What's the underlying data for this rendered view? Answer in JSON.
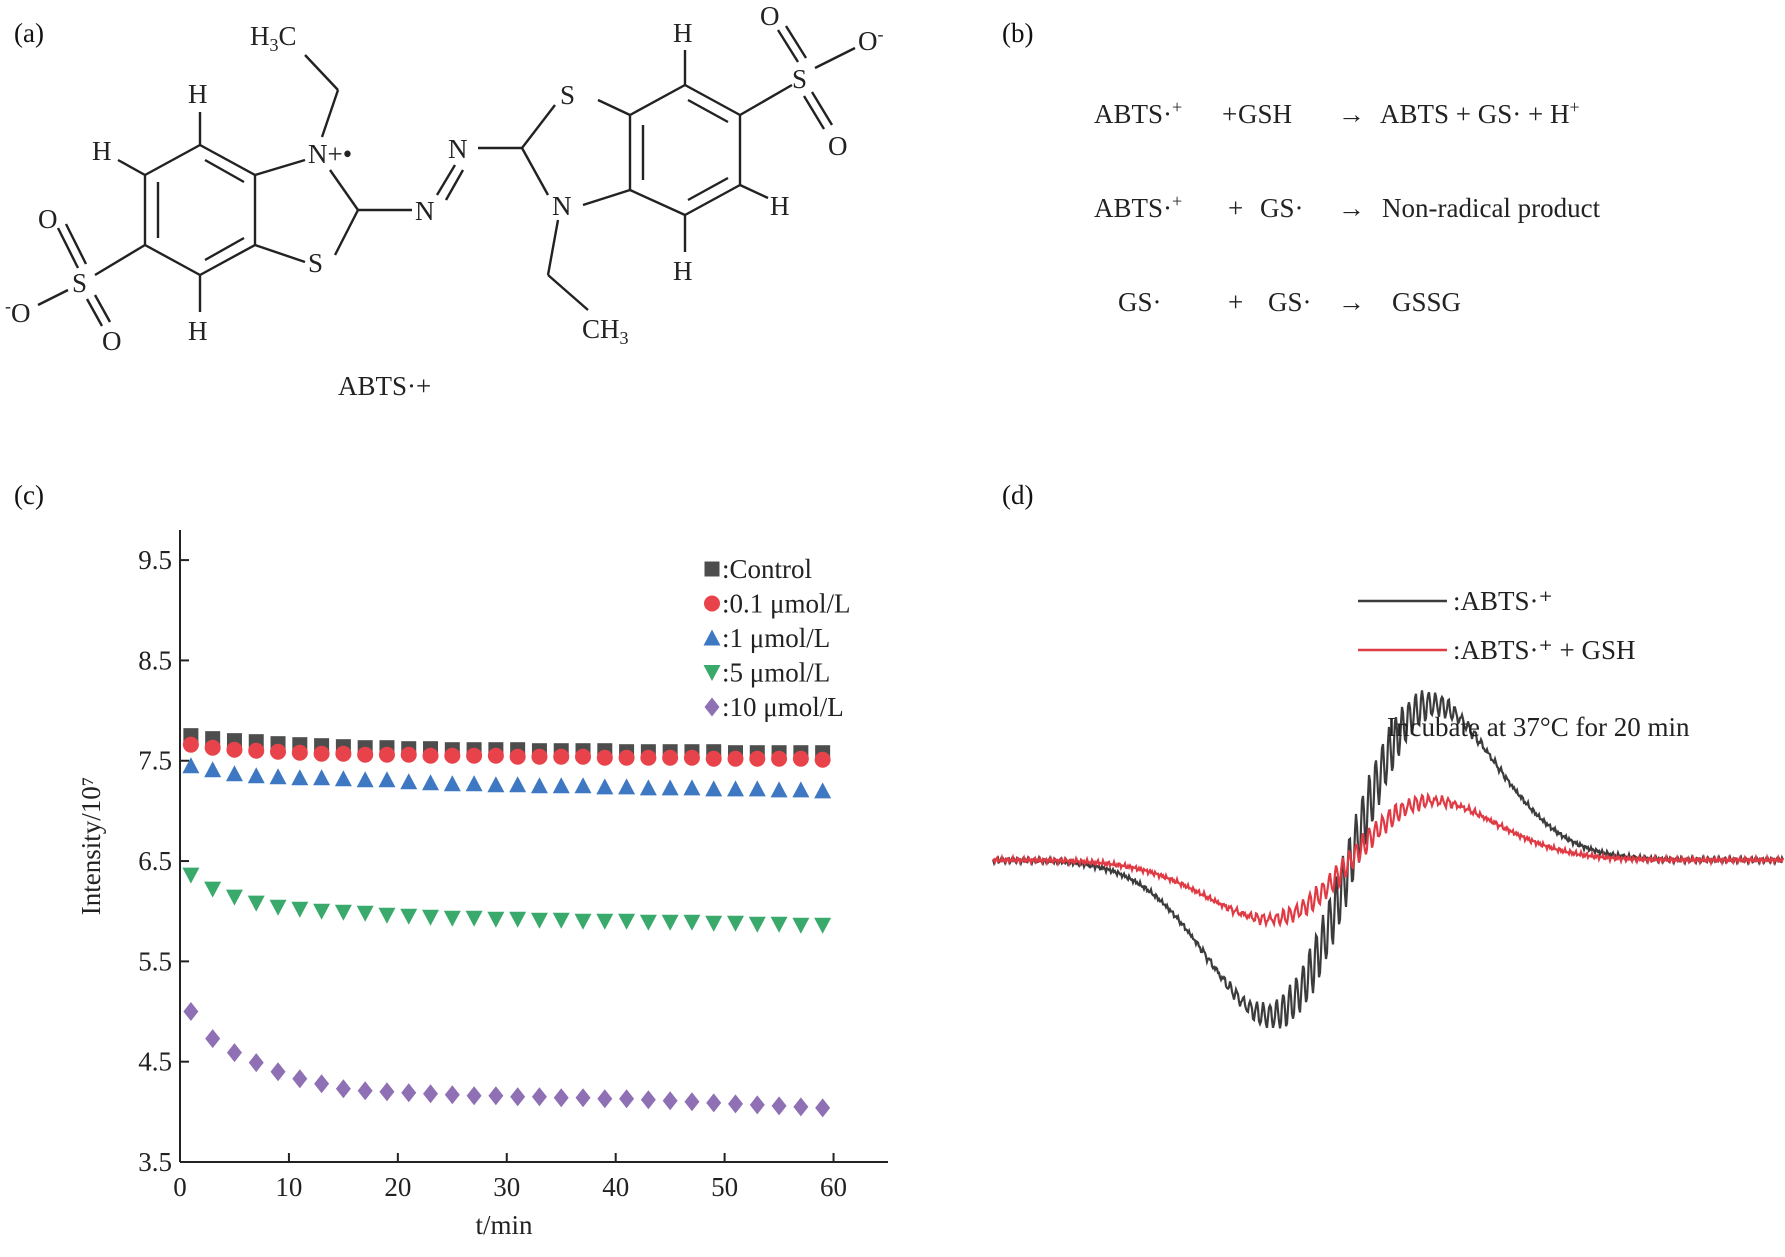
{
  "panels": {
    "a": {
      "label": "(a)",
      "caption": "ABTS·+",
      "atoms": {
        "h3c": "H3C",
        "ch3": "CH3",
        "n_plus": "N+•",
        "n2": "N",
        "n_azo1": "N",
        "n_azo2": "N",
        "s1": "S",
        "s2": "S",
        "s3": "S",
        "s4": "S",
        "o1": "O",
        "o2": "O",
        "o3": "O",
        "o4": "O",
        "o_minus1": "-O",
        "o_minus2": "O-",
        "h1": "H",
        "h2": "H",
        "h3": "H",
        "h4": "H",
        "h5": "H",
        "h6": "H"
      }
    },
    "b": {
      "label": "(b)",
      "reactions": [
        {
          "reactant1": "ABTS·+",
          "plus": "+",
          "reactant2": "GSH",
          "arrow": "→",
          "products": "ABTS + GS· + H+"
        },
        {
          "reactant1": "ABTS·+",
          "plus": "+",
          "reactant2": "GS·",
          "arrow": "→",
          "products": "Non-radical product"
        },
        {
          "reactant1": "GS·",
          "plus": "+",
          "reactant2": "GS·",
          "arrow": "→",
          "products": "GSSG"
        }
      ]
    },
    "c": {
      "label": "(c)"
    },
    "d": {
      "label": "(d)"
    }
  },
  "chart_data": [
    {
      "type": "scatter",
      "panel": "c",
      "xlabel": "t/min",
      "ylabel": "Intensity/10⁷",
      "xlim": [
        0,
        65
      ],
      "ylim": [
        3.5,
        9.8
      ],
      "xticks": [
        0,
        10,
        20,
        30,
        40,
        50,
        60
      ],
      "yticks": [
        3.5,
        4.5,
        5.5,
        6.5,
        7.5,
        8.5,
        9.5
      ],
      "legend": "top-right",
      "x": [
        1,
        3,
        5,
        7,
        9,
        11,
        13,
        15,
        17,
        19,
        21,
        23,
        25,
        27,
        29,
        31,
        33,
        35,
        37,
        39,
        41,
        43,
        45,
        47,
        49,
        51,
        53,
        55,
        57,
        59
      ],
      "series": [
        {
          "name": ":Control",
          "marker": "square",
          "color": "#4d4d4d",
          "values": [
            7.75,
            7.72,
            7.7,
            7.69,
            7.67,
            7.66,
            7.65,
            7.64,
            7.63,
            7.63,
            7.62,
            7.62,
            7.61,
            7.61,
            7.61,
            7.61,
            7.6,
            7.6,
            7.6,
            7.6,
            7.59,
            7.59,
            7.59,
            7.59,
            7.59,
            7.58,
            7.58,
            7.58,
            7.58,
            7.58
          ]
        },
        {
          "name": ":0.1 μmol/L",
          "marker": "circle",
          "color": "#e8434a",
          "values": [
            7.66,
            7.63,
            7.61,
            7.6,
            7.59,
            7.58,
            7.57,
            7.57,
            7.56,
            7.56,
            7.56,
            7.55,
            7.55,
            7.55,
            7.55,
            7.54,
            7.54,
            7.54,
            7.54,
            7.53,
            7.53,
            7.53,
            7.53,
            7.53,
            7.52,
            7.52,
            7.52,
            7.52,
            7.52,
            7.51
          ]
        },
        {
          "name": ":1 μmol/L",
          "marker": "triangle-up",
          "color": "#3e78c2",
          "values": [
            7.45,
            7.41,
            7.37,
            7.35,
            7.34,
            7.33,
            7.33,
            7.32,
            7.31,
            7.31,
            7.29,
            7.28,
            7.27,
            7.27,
            7.26,
            7.26,
            7.25,
            7.25,
            7.25,
            7.24,
            7.24,
            7.23,
            7.23,
            7.23,
            7.22,
            7.22,
            7.22,
            7.21,
            7.21,
            7.2
          ]
        },
        {
          "name": ":5 μmol/L",
          "marker": "triangle-down",
          "color": "#3aaa6c",
          "values": [
            6.36,
            6.22,
            6.14,
            6.08,
            6.04,
            6.02,
            6.0,
            5.99,
            5.98,
            5.96,
            5.95,
            5.94,
            5.93,
            5.93,
            5.92,
            5.92,
            5.91,
            5.91,
            5.9,
            5.9,
            5.9,
            5.89,
            5.89,
            5.89,
            5.88,
            5.88,
            5.87,
            5.87,
            5.86,
            5.86
          ]
        },
        {
          "name": ":10 μmol/L",
          "marker": "diamond",
          "color": "#8f70b4",
          "values": [
            5.0,
            4.73,
            4.59,
            4.49,
            4.4,
            4.33,
            4.28,
            4.23,
            4.21,
            4.2,
            4.19,
            4.18,
            4.17,
            4.16,
            4.16,
            4.15,
            4.15,
            4.14,
            4.14,
            4.13,
            4.13,
            4.12,
            4.11,
            4.1,
            4.09,
            4.08,
            4.07,
            4.06,
            4.05,
            4.04
          ]
        }
      ]
    },
    {
      "type": "line",
      "panel": "d",
      "annotation": "Incubate at 37°C for 20 min",
      "legend": "top-right",
      "series": [
        {
          "name": ":ABTS·⁺",
          "color": "#3c3c3c",
          "relative_amplitude": 1.0
        },
        {
          "name": ":ABTS·⁺ + GSH",
          "color": "#e03a44",
          "relative_amplitude": 0.38
        }
      ]
    }
  ]
}
